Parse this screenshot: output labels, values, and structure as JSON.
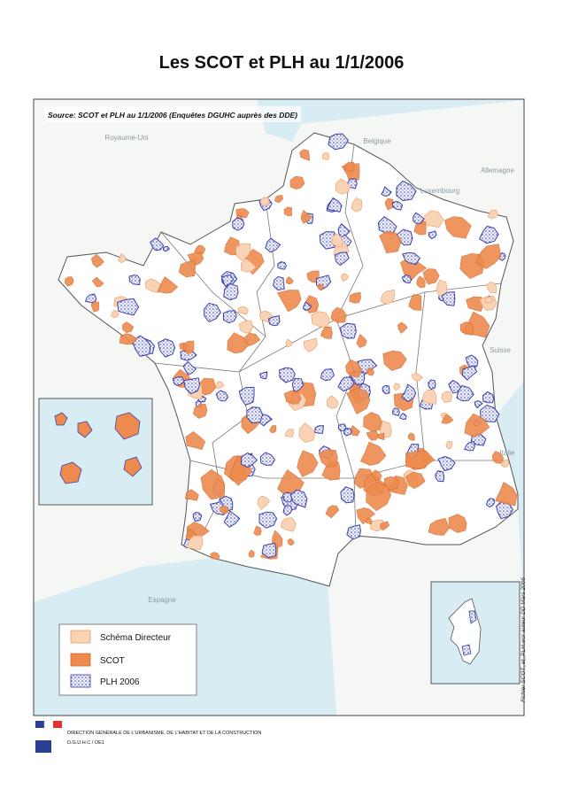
{
  "header": {
    "title": "Les SCOT et PLH au 1/1/2006"
  },
  "map": {
    "source": "Source: SCOT et PLH au 1/1/2006 (Enquêtes DGUHC auprès des DDE)",
    "country_labels": [
      "Royaume-Uni",
      "Belgique",
      "Allemagne",
      "Luxembourg",
      "Suisse",
      "Italie",
      "Espagne"
    ],
    "legend": {
      "items": [
        "Schéma Directeur",
        "SCOT",
        "PLH 2006"
      ]
    },
    "credit": "Fichier SCOT_et_PLH.wor auteur DD Mars 2006"
  },
  "footer": {
    "organization": "DIRECTION GÉNÉRALE DE L'URBANISME, DE L'HABITAT ET DE LA CONSTRUCTION",
    "unit": "D.G.U.H.C / OE1"
  }
}
